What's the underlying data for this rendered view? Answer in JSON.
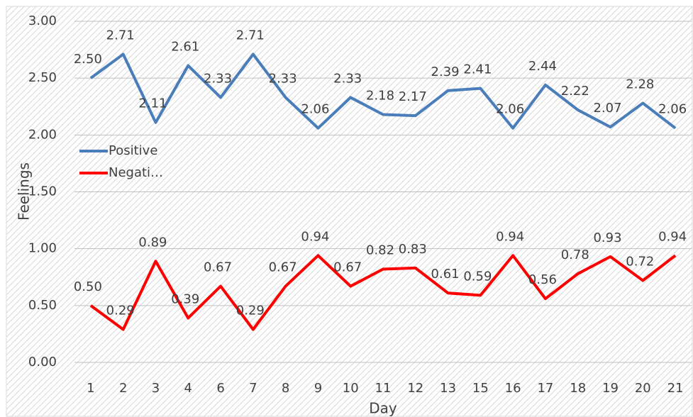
{
  "chart_data": {
    "type": "line",
    "x_label": "Day",
    "y_label": "Feelings",
    "categories": [
      "1",
      "2",
      "3",
      "4",
      "6",
      "7",
      "8",
      "9",
      "10",
      "11",
      "12",
      "13",
      "15",
      "16",
      "17",
      "18",
      "19",
      "20",
      "21"
    ],
    "series": [
      {
        "name": "Positive",
        "color": "#4a7ebb",
        "values": [
          2.5,
          2.71,
          2.11,
          2.61,
          2.33,
          2.71,
          2.33,
          2.06,
          2.33,
          2.18,
          2.17,
          2.39,
          2.41,
          2.06,
          2.44,
          2.22,
          2.07,
          2.28,
          2.06
        ],
        "value_labels": [
          "2.50",
          "2.71",
          "2.11",
          "2.61",
          "2.33",
          "2.71",
          "2.33",
          "2.06",
          "2.33",
          "2.18",
          "2.17",
          "2.39",
          "2.41",
          "2.06",
          "2.44",
          "2.22",
          "2.07",
          "2.28",
          "2.06"
        ]
      },
      {
        "name": "Negati…",
        "color": "#ff0000",
        "values": [
          0.5,
          0.29,
          0.89,
          0.39,
          0.67,
          0.29,
          0.67,
          0.94,
          0.67,
          0.82,
          0.83,
          0.61,
          0.59,
          0.94,
          0.56,
          0.78,
          0.93,
          0.72,
          0.94
        ],
        "value_labels": [
          "0.50",
          "0.29",
          "0.89",
          "0.39",
          "0.67",
          "0.29",
          "0.67",
          "0.94",
          "0.67",
          "0.82",
          "0.83",
          "0.61",
          "0.59",
          "0.94",
          "0.56",
          "0.78",
          "0.93",
          "0.72",
          "0.94"
        ]
      }
    ],
    "ylim": [
      0,
      3
    ],
    "yticks": [
      {
        "value": 0,
        "label": "0.00"
      },
      {
        "value": 0.5,
        "label": "0.50"
      },
      {
        "value": 1,
        "label": "1.00"
      },
      {
        "value": 1.5,
        "label": "1.50"
      },
      {
        "value": 2,
        "label": "2.00"
      },
      {
        "value": 2.5,
        "label": "2.50"
      },
      {
        "value": 3,
        "label": "3.00"
      }
    ],
    "grid": true,
    "legend": "left"
  }
}
